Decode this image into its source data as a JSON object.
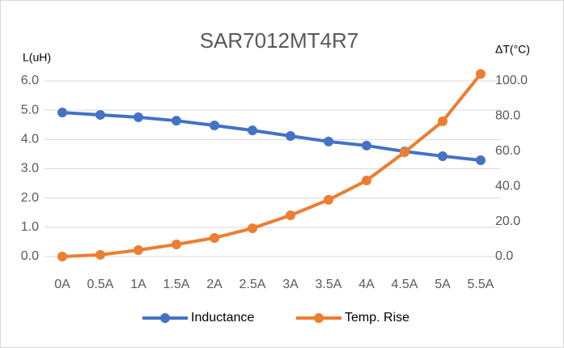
{
  "chart_data": {
    "type": "line",
    "title": "SAR7012MT4R7",
    "y_label": "L(uH)",
    "y2_label": "ΔT(°C)",
    "categories": [
      "0A",
      "0.5A",
      "1A",
      "1.5A",
      "2A",
      "2.5A",
      "3A",
      "3.5A",
      "4A",
      "4.5A",
      "5A",
      "5.5A"
    ],
    "series": [
      {
        "name": "Inductance",
        "color": "#4472c4",
        "values": [
          4.92,
          4.84,
          4.76,
          4.64,
          4.48,
          4.31,
          4.12,
          3.93,
          3.79,
          3.59,
          3.43,
          3.29
        ]
      },
      {
        "name": "Temp. Rise",
        "color": "#ed7d31",
        "axis": "y2",
        "values": [
          0,
          1,
          3.7,
          6.9,
          10.6,
          16.1,
          23.5,
          32.3,
          43.3,
          59.4,
          77,
          104
        ]
      }
    ],
    "ylim": [
      0,
      6
    ],
    "yticks": [
      {
        "value": 0,
        "label": "0.0"
      },
      {
        "value": 1,
        "label": "1.0"
      },
      {
        "value": 2,
        "label": "2.0"
      },
      {
        "value": 3,
        "label": "3.0"
      },
      {
        "value": 4,
        "label": "4.0"
      },
      {
        "value": 5,
        "label": "5.0"
      },
      {
        "value": 6,
        "label": "6.0"
      }
    ],
    "y2lim": [
      0,
      100
    ],
    "y2ticks": [
      {
        "value": 0,
        "label": "0.0"
      },
      {
        "value": 20,
        "label": "20.0"
      },
      {
        "value": 40,
        "label": "40.0"
      },
      {
        "value": 60,
        "label": "60.0"
      },
      {
        "value": 80,
        "label": "80.0"
      },
      {
        "value": 100,
        "label": "100.0"
      }
    ],
    "grid": true,
    "legend": "bottom"
  }
}
